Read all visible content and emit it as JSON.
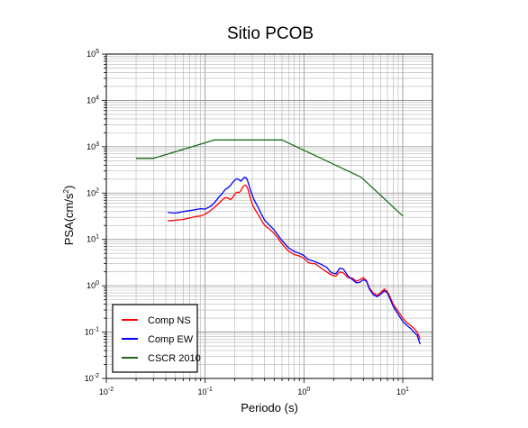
{
  "chart_data": {
    "type": "line",
    "title": "Sitio PCOB",
    "xlabel": "Periodo (s)",
    "ylabel_base": "PSA(cm/s",
    "ylabel_sup": "2",
    "ylabel_close": ")",
    "xscale": "log",
    "yscale": "log",
    "xlim": [
      0.01,
      20
    ],
    "ylim": [
      0.01,
      100000
    ],
    "grid": true,
    "legend_position": "bottom-left",
    "x_ticks": [
      {
        "base": "10",
        "exp": "-2",
        "value": 0.01
      },
      {
        "base": "10",
        "exp": "-1",
        "value": 0.1
      },
      {
        "base": "10",
        "exp": "0",
        "value": 1
      },
      {
        "base": "10",
        "exp": "1",
        "value": 10
      }
    ],
    "y_ticks": [
      {
        "base": "10",
        "exp": "-2",
        "value": 0.01
      },
      {
        "base": "10",
        "exp": "-1",
        "value": 0.1
      },
      {
        "base": "10",
        "exp": "0",
        "value": 1
      },
      {
        "base": "10",
        "exp": "1",
        "value": 10
      },
      {
        "base": "10",
        "exp": "2",
        "value": 100
      },
      {
        "base": "10",
        "exp": "3",
        "value": 1000
      },
      {
        "base": "10",
        "exp": "4",
        "value": 10000
      },
      {
        "base": "10",
        "exp": "5",
        "value": 100000
      }
    ],
    "series": [
      {
        "name": "Comp NS",
        "color": "#ff0000",
        "x": [
          0.042,
          0.05,
          0.06,
          0.07,
          0.08,
          0.09,
          0.1,
          0.11,
          0.12,
          0.13,
          0.14,
          0.15,
          0.16,
          0.17,
          0.18,
          0.19,
          0.2,
          0.21,
          0.22,
          0.23,
          0.24,
          0.25,
          0.26,
          0.27,
          0.28,
          0.29,
          0.3,
          0.31,
          0.32,
          0.34,
          0.36,
          0.38,
          0.4,
          0.45,
          0.5,
          0.55,
          0.6,
          0.65,
          0.7,
          0.8,
          0.9,
          1.0,
          1.1,
          1.2,
          1.3,
          1.5,
          1.7,
          1.9,
          2.1,
          2.3,
          2.5,
          2.8,
          3.1,
          3.4,
          3.7,
          4.0,
          4.3,
          4.6,
          5.0,
          5.5,
          6.0,
          6.5,
          7.0,
          7.5,
          8.0,
          9.0,
          10.0,
          11.0,
          12.0,
          13.0,
          14.0,
          15.0
        ],
        "y": [
          25,
          26,
          27,
          29,
          31,
          32,
          35,
          40,
          46,
          54,
          62,
          72,
          80,
          78,
          72,
          80,
          95,
          105,
          102,
          112,
          135,
          148,
          145,
          125,
          95,
          72,
          58,
          50,
          44,
          36,
          29,
          24,
          20,
          16.5,
          13.5,
          10.5,
          8,
          6.6,
          5.6,
          4.7,
          4.4,
          3.9,
          3.2,
          3.0,
          3.0,
          2.4,
          2.0,
          1.7,
          1.6,
          2.0,
          1.9,
          1.5,
          1.45,
          1.25,
          1.35,
          1.5,
          1.3,
          0.9,
          0.7,
          0.62,
          0.72,
          0.85,
          0.75,
          0.55,
          0.4,
          0.28,
          0.2,
          0.16,
          0.14,
          0.12,
          0.1,
          0.07
        ]
      },
      {
        "name": "Comp EW",
        "color": "#0000ff",
        "x": [
          0.042,
          0.05,
          0.06,
          0.07,
          0.08,
          0.09,
          0.1,
          0.11,
          0.12,
          0.13,
          0.14,
          0.15,
          0.16,
          0.17,
          0.18,
          0.19,
          0.2,
          0.21,
          0.22,
          0.23,
          0.24,
          0.25,
          0.26,
          0.27,
          0.28,
          0.29,
          0.3,
          0.31,
          0.32,
          0.34,
          0.36,
          0.38,
          0.4,
          0.45,
          0.5,
          0.55,
          0.6,
          0.65,
          0.7,
          0.8,
          0.9,
          1.0,
          1.1,
          1.2,
          1.3,
          1.5,
          1.7,
          1.9,
          2.1,
          2.3,
          2.5,
          2.8,
          3.1,
          3.4,
          3.7,
          4.0,
          4.3,
          4.6,
          5.0,
          5.5,
          6.0,
          6.5,
          7.0,
          7.5,
          8.0,
          9.0,
          10.0,
          11.0,
          12.0,
          13.0,
          14.0,
          15.0
        ],
        "y": [
          38,
          37,
          40,
          42,
          44,
          46,
          45,
          50,
          57,
          70,
          85,
          100,
          120,
          130,
          145,
          170,
          190,
          205,
          195,
          180,
          200,
          220,
          215,
          180,
          140,
          110,
          90,
          75,
          65,
          52,
          40,
          32,
          26,
          20,
          16,
          12,
          9.5,
          7.8,
          6.6,
          5.5,
          5.0,
          4.5,
          3.7,
          3.5,
          3.3,
          2.9,
          2.5,
          1.9,
          1.8,
          2.4,
          2.3,
          1.6,
          1.35,
          1.15,
          1.2,
          1.35,
          1.25,
          0.85,
          0.65,
          0.58,
          0.66,
          0.78,
          0.7,
          0.5,
          0.36,
          0.24,
          0.17,
          0.14,
          0.12,
          0.1,
          0.085,
          0.055
        ]
      },
      {
        "name": "CSCR 2010",
        "color": "#1a6b1a",
        "x": [
          0.02,
          0.03,
          0.125,
          0.6,
          3.8,
          10.0
        ],
        "y": [
          560,
          560,
          1400,
          1400,
          220,
          32
        ]
      }
    ]
  }
}
